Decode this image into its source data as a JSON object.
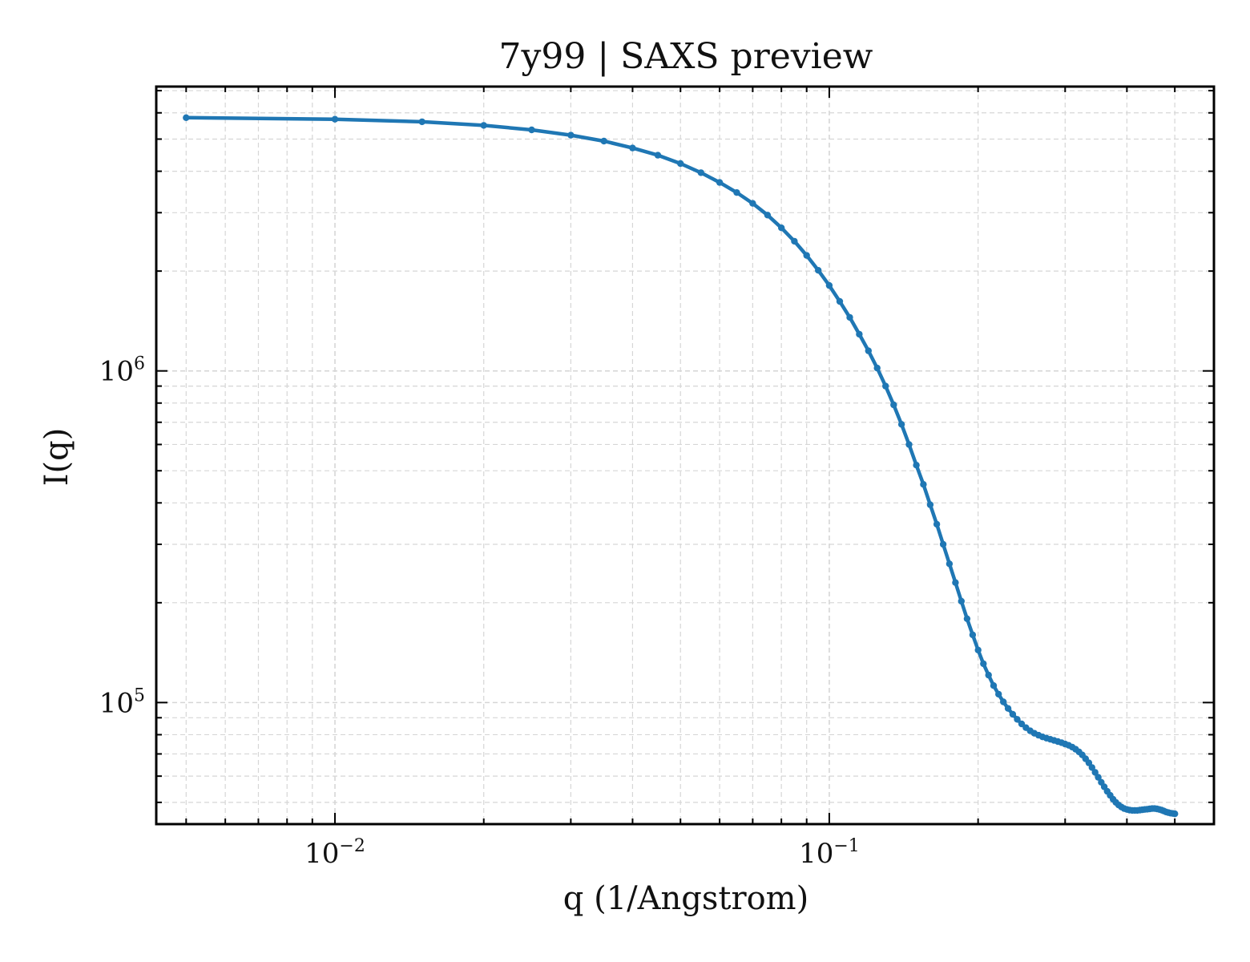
{
  "chart_data": {
    "type": "line",
    "title": "7y99 | SAXS preview",
    "xlabel": "q (1/Angstrom)",
    "ylabel": "I(q)",
    "xscale": "log",
    "yscale": "log",
    "xlim": [
      0.00435,
      0.6
    ],
    "ylim": [
      43000,
      7200000
    ],
    "grid": true,
    "legend": "none",
    "colors": {
      "line": "#1f77b4",
      "axis": "#000000",
      "grid": "#d6d6d6"
    },
    "xticks": [
      {
        "value": 0.01,
        "base": "10",
        "exp": "−2"
      },
      {
        "value": 0.1,
        "base": "10",
        "exp": "−1"
      }
    ],
    "yticks": [
      {
        "value": 100000,
        "base": "10",
        "exp": "5"
      },
      {
        "value": 1000000,
        "base": "10",
        "exp": "6"
      }
    ],
    "series": [
      {
        "x": [
          0.005,
          0.01,
          0.015,
          0.02,
          0.025,
          0.03,
          0.035,
          0.04,
          0.045,
          0.05,
          0.055,
          0.06,
          0.065,
          0.07,
          0.075,
          0.08,
          0.085,
          0.09,
          0.095,
          0.1,
          0.105,
          0.11,
          0.115,
          0.12,
          0.125,
          0.13,
          0.135,
          0.14,
          0.145,
          0.15,
          0.155,
          0.16,
          0.165,
          0.17,
          0.175,
          0.18,
          0.185,
          0.19,
          0.195,
          0.2,
          0.205,
          0.21,
          0.215,
          0.22,
          0.225,
          0.23,
          0.235,
          0.24,
          0.245,
          0.25,
          0.255,
          0.26,
          0.265,
          0.27,
          0.275,
          0.28,
          0.285,
          0.29,
          0.295,
          0.3,
          0.305,
          0.31,
          0.315,
          0.32,
          0.325,
          0.33,
          0.335,
          0.34,
          0.345,
          0.35,
          0.355,
          0.36,
          0.365,
          0.37,
          0.375,
          0.38,
          0.385,
          0.39,
          0.395,
          0.4,
          0.405,
          0.41,
          0.415,
          0.42,
          0.425,
          0.43,
          0.435,
          0.44,
          0.445,
          0.45,
          0.455,
          0.46,
          0.465,
          0.47,
          0.475,
          0.48,
          0.485,
          0.49,
          0.495,
          0.5
        ],
        "y": [
          5800000,
          5740000,
          5640000,
          5500000,
          5330000,
          5140000,
          4930000,
          4700000,
          4470000,
          4220000,
          3960000,
          3700000,
          3450000,
          3200000,
          2950000,
          2700000,
          2460000,
          2230000,
          2010000,
          1810000,
          1620000,
          1450000,
          1290000,
          1150000,
          1020000,
          900000,
          790000,
          690000,
          600000,
          520000,
          455000,
          395000,
          345000,
          300000,
          262000,
          230000,
          202000,
          179000,
          160000,
          144000,
          131000,
          121000,
          112500,
          106000,
          100500,
          96000,
          92200,
          89000,
          86200,
          84000,
          82200,
          80800,
          79700,
          78800,
          78100,
          77500,
          76900,
          76300,
          75700,
          75000,
          74300,
          73400,
          72300,
          71000,
          69500,
          67700,
          65800,
          63700,
          61600,
          59500,
          57500,
          55700,
          54000,
          52500,
          51100,
          50000,
          49100,
          48400,
          47900,
          47600,
          47400,
          47300,
          47300,
          47300,
          47400,
          47500,
          47600,
          47700,
          47800,
          47900,
          47900,
          47800,
          47600,
          47400,
          47100,
          46800,
          46600,
          46400,
          46300,
          46200
        ]
      }
    ]
  }
}
